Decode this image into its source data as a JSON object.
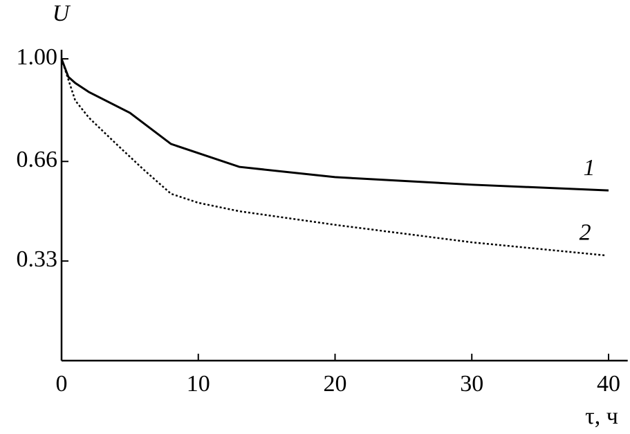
{
  "chart_data": {
    "type": "line",
    "x_label": "τ, ч",
    "y_label": "U",
    "xlim": [
      0,
      41.4
    ],
    "ylim": [
      0,
      1.03
    ],
    "xticks": [
      0,
      10,
      20,
      30,
      40
    ],
    "yticks": [
      {
        "value": 1,
        "label": "1.00"
      },
      0.66,
      0.33
    ],
    "series": [
      {
        "name": "1",
        "color": "#000000",
        "style": "solid",
        "x": [
          0,
          0.5,
          1,
          2,
          5,
          8,
          13,
          20,
          30,
          40
        ],
        "values": [
          1.0,
          0.94,
          0.92,
          0.89,
          0.821,
          0.718,
          0.642,
          0.608,
          0.583,
          0.564
        ]
      },
      {
        "name": "2",
        "color": "#000000",
        "style": "dotted",
        "x": [
          0,
          1,
          2,
          4,
          6,
          8,
          10,
          13,
          20,
          30,
          39.7
        ],
        "values": [
          1.0,
          0.862,
          0.805,
          0.718,
          0.633,
          0.553,
          0.523,
          0.495,
          0.45,
          0.392,
          0.349
        ]
      }
    ]
  }
}
